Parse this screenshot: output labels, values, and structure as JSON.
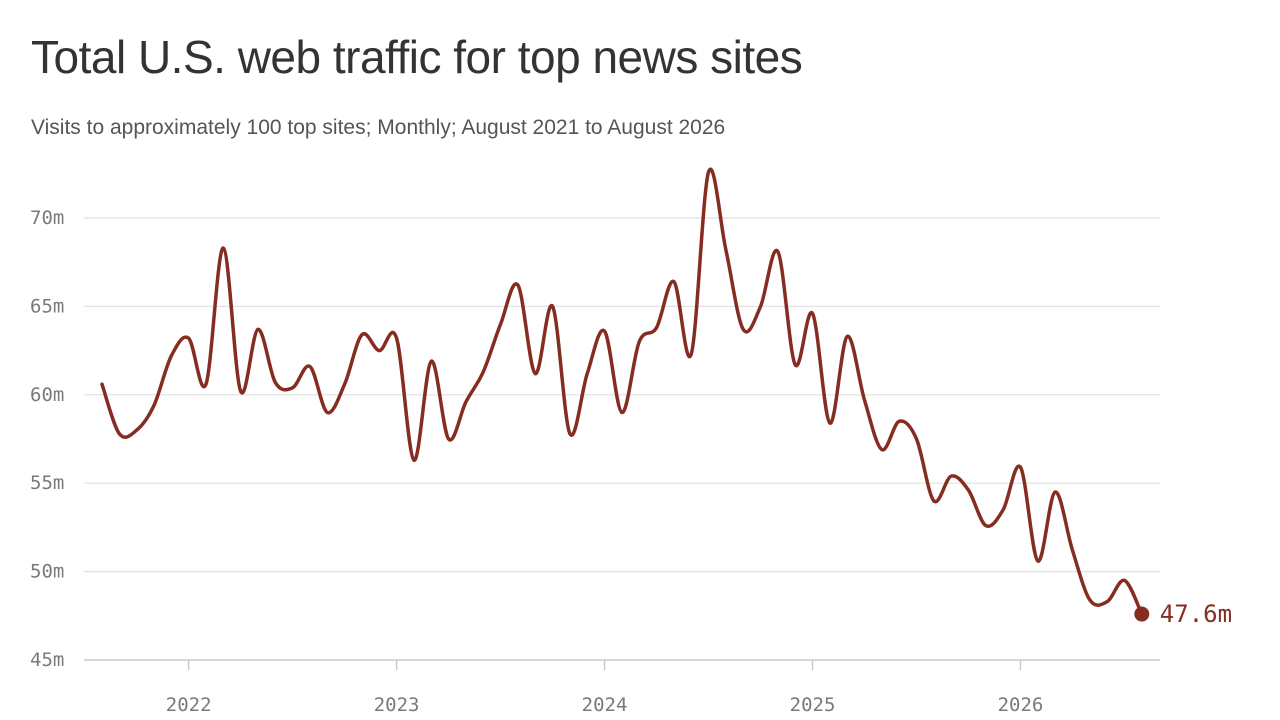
{
  "header": {
    "title": "Total U.S. web traffic for top news sites",
    "subtitle": "Visits to approximately 100 top sites; Monthly; August 2021 to August 2026"
  },
  "colors": {
    "line": "#862d22",
    "grid": "#e1e1e1",
    "axis": "#c8c8c8",
    "tick_text": "#7a7a7a",
    "title": "#333333",
    "subtitle": "#555555"
  },
  "chart_data": {
    "type": "line",
    "title": "Total U.S. web traffic for top news sites",
    "subtitle": "Visits to approximately 100 top sites; Monthly; August 2021 to August 2026",
    "xlabel": "",
    "ylabel": "",
    "x_unit": "month",
    "x": [
      "2021-08",
      "2021-09",
      "2021-10",
      "2021-11",
      "2021-12",
      "2022-01",
      "2022-02",
      "2022-03",
      "2022-04",
      "2022-05",
      "2022-06",
      "2022-07",
      "2022-08",
      "2022-09",
      "2022-10",
      "2022-11",
      "2022-12",
      "2023-01",
      "2023-02",
      "2023-03",
      "2023-04",
      "2023-05",
      "2023-06",
      "2023-07",
      "2023-08",
      "2023-09",
      "2023-10",
      "2023-11",
      "2023-12",
      "2024-01",
      "2024-02",
      "2024-03",
      "2024-04",
      "2024-05",
      "2024-06",
      "2024-07",
      "2024-08",
      "2024-09",
      "2024-10",
      "2024-11",
      "2024-12",
      "2025-01",
      "2025-02",
      "2025-03",
      "2025-04",
      "2025-05",
      "2025-06",
      "2025-07",
      "2025-08",
      "2025-09",
      "2025-10",
      "2025-11",
      "2025-12",
      "2026-01",
      "2026-02",
      "2026-03",
      "2026-04",
      "2026-05",
      "2026-06",
      "2026-07",
      "2026-08"
    ],
    "series": [
      {
        "values": [
          60.6,
          57.8,
          58.0,
          59.4,
          62.2,
          63.2,
          60.6,
          68.3,
          60.2,
          63.7,
          60.7,
          60.4,
          61.6,
          59.0,
          60.6,
          63.4,
          62.5,
          63.2,
          56.3,
          61.9,
          57.5,
          59.6,
          61.3,
          64.0,
          66.2,
          61.2,
          65.0,
          57.8,
          61.2,
          63.6,
          59.0,
          63.0,
          63.8,
          66.4,
          62.3,
          72.6,
          68.2,
          63.7,
          65.0,
          68.1,
          61.7,
          64.6,
          58.4,
          63.3,
          59.7,
          56.9,
          58.5,
          57.5,
          54.0,
          55.4,
          54.6,
          52.6,
          53.5,
          55.9,
          50.6,
          54.5,
          51.2,
          48.4,
          48.3,
          49.5,
          47.6
        ]
      }
    ],
    "ylim": [
      45,
      70
    ],
    "yticks": [
      45,
      50,
      55,
      60,
      65,
      70
    ],
    "ytick_labels": [
      "45m",
      "50m",
      "55m",
      "60m",
      "65m",
      "70m"
    ],
    "xticks": [
      "2022-01",
      "2023-01",
      "2024-01",
      "2025-01",
      "2026-01"
    ],
    "xtick_labels": [
      "2022",
      "2023",
      "2024",
      "2025",
      "2026"
    ],
    "end_label": "47.6m",
    "grid": true,
    "legend": "none"
  }
}
